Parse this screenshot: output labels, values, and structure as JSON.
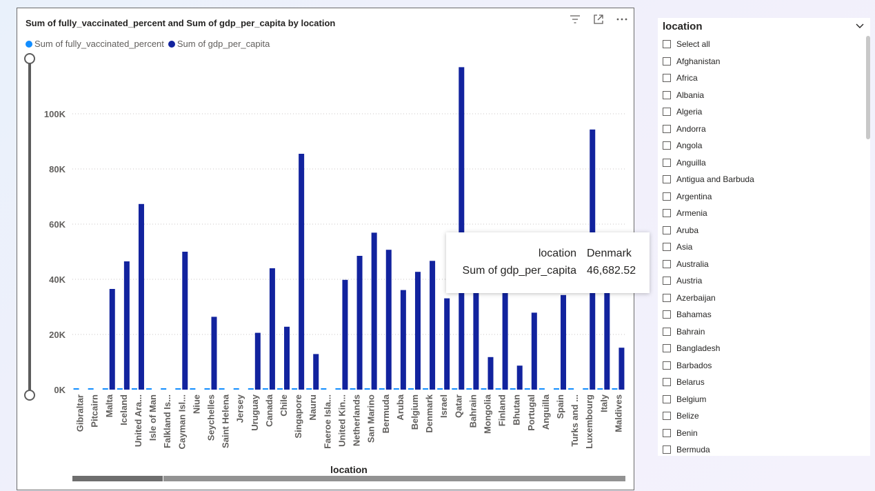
{
  "chart": {
    "title": "Sum of fully_vaccinated_percent and Sum of gdp_per_capita by location",
    "legend": [
      {
        "label": "Sum of fully_vaccinated_percent",
        "color": "#118DFF"
      },
      {
        "label": "Sum of gdp_per_capita",
        "color": "#12239E"
      }
    ],
    "header_icons": [
      "filter-icon",
      "focus-mode-icon",
      "more-options-icon"
    ]
  },
  "chart_data": {
    "type": "bar",
    "title": "Sum of fully_vaccinated_percent and Sum of gdp_per_capita by location",
    "xlabel": "location",
    "ylabel": "",
    "ylim": [
      0,
      120000
    ],
    "y_ticks": [
      "0K",
      "20K",
      "40K",
      "60K",
      "80K",
      "100K"
    ],
    "grid": true,
    "legend_position": "top-left",
    "categories": [
      "Gibraltar",
      "Pitcairn",
      "Malta",
      "Iceland",
      "United Ara...",
      "Isle of Man",
      "Falkland Is...",
      "Cayman Isl...",
      "Niue",
      "Seychelles",
      "Saint Helena",
      "Jersey",
      "Uruguay",
      "Canada",
      "Chile",
      "Singapore",
      "Nauru",
      "Faeroe Isla...",
      "United Kin...",
      "Netherlands",
      "San Marino",
      "Bermuda",
      "Aruba",
      "Belgium",
      "Denmark",
      "Israel",
      "Qatar",
      "Bahrain",
      "Mongolia",
      "Finland",
      "Bhutan",
      "Portugal",
      "Anguilla",
      "Spain",
      "Turks and ...",
      "Luxembourg",
      "Italy",
      "Maldives"
    ],
    "series": [
      {
        "name": "Sum of fully_vaccinated_percent",
        "color": "#118DFF",
        "values": [
          80,
          80,
          80,
          80,
          80,
          80,
          80,
          80,
          80,
          80,
          80,
          80,
          80,
          80,
          80,
          80,
          80,
          80,
          80,
          80,
          80,
          80,
          80,
          80,
          80,
          80,
          80,
          80,
          80,
          80,
          80,
          80,
          80,
          80,
          80,
          80,
          80,
          80
        ]
      },
      {
        "name": "Sum of gdp_per_capita",
        "color": "#12239E",
        "values": [
          0,
          0,
          36500,
          46500,
          67300,
          0,
          0,
          50000,
          0,
          26400,
          0,
          0,
          20600,
          44000,
          22800,
          85500,
          12900,
          0,
          39800,
          48500,
          56900,
          50700,
          36100,
          42700,
          46682.52,
          33100,
          116900,
          43300,
          11800,
          40600,
          8700,
          27900,
          0,
          34300,
          0,
          94300,
          35200,
          15200
        ]
      }
    ]
  },
  "tooltip": {
    "rows": [
      {
        "key": "location",
        "value": "Denmark"
      },
      {
        "key": "Sum of gdp_per_capita",
        "value": "46,682.52"
      }
    ]
  },
  "slicer": {
    "title": "location",
    "items": [
      "Select all",
      "Afghanistan",
      "Africa",
      "Albania",
      "Algeria",
      "Andorra",
      "Angola",
      "Anguilla",
      "Antigua and Barbuda",
      "Argentina",
      "Armenia",
      "Aruba",
      "Asia",
      "Australia",
      "Austria",
      "Azerbaijan",
      "Bahamas",
      "Bahrain",
      "Bangladesh",
      "Barbados",
      "Belarus",
      "Belgium",
      "Belize",
      "Benin",
      "Bermuda"
    ]
  }
}
